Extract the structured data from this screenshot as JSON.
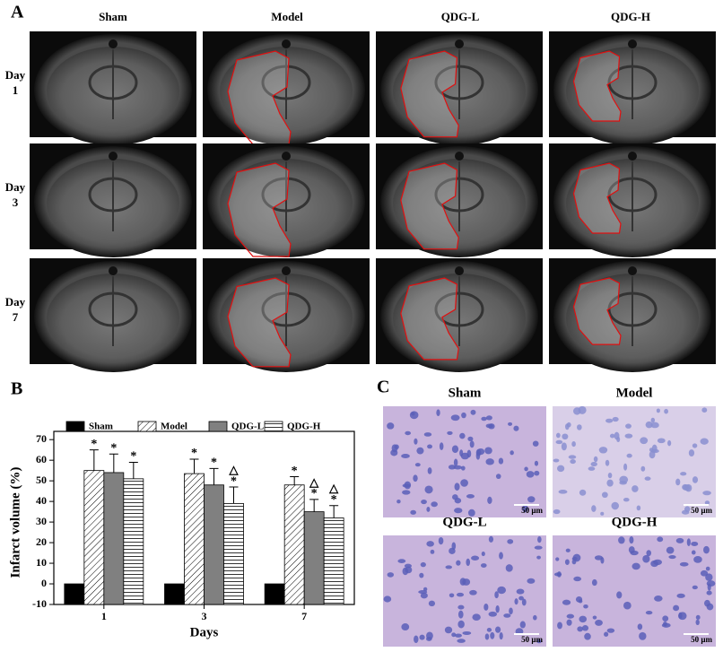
{
  "panel_a": {
    "label": "A",
    "columns": [
      "Sham",
      "Model",
      "QDG-L",
      "QDG-H"
    ],
    "rows": [
      [
        "Day",
        "1"
      ],
      [
        "Day",
        "3"
      ],
      [
        "Day",
        "7"
      ]
    ]
  },
  "chart_data": {
    "type": "bar",
    "label": "B",
    "x_label": "Days",
    "y_label": "Infarct volume (%)",
    "categories": [
      "1",
      "3",
      "7"
    ],
    "series": [
      {
        "name": "Sham",
        "color": "#000000",
        "pattern": "solid",
        "values": [
          0,
          0,
          0
        ],
        "errors": [
          0,
          0,
          0
        ],
        "annotations": [
          [],
          [],
          []
        ]
      },
      {
        "name": "Model",
        "color": "#ffffff",
        "pattern": "diagonal",
        "values": [
          55,
          53.5,
          48
        ],
        "errors": [
          10,
          7,
          4
        ],
        "annotations": [
          [
            "*"
          ],
          [
            "*"
          ],
          [
            "*"
          ]
        ]
      },
      {
        "name": "QDG-L",
        "color": "#808080",
        "pattern": "solid",
        "values": [
          54,
          48,
          35
        ],
        "errors": [
          9,
          8,
          6
        ],
        "annotations": [
          [
            "*"
          ],
          [
            "*"
          ],
          [
            "*",
            "△"
          ]
        ]
      },
      {
        "name": "QDG-H",
        "color": "#ffffff",
        "pattern": "horizontal",
        "values": [
          51,
          39,
          32
        ],
        "errors": [
          8,
          8,
          6
        ],
        "annotations": [
          [
            "*"
          ],
          [
            "*",
            "△"
          ],
          [
            "*",
            "△"
          ]
        ]
      }
    ],
    "ylim": [
      -10,
      74
    ],
    "yticks": [
      -10,
      0,
      10,
      20,
      30,
      40,
      50,
      60,
      70
    ],
    "legend": "top"
  },
  "panel_c": {
    "label": "C",
    "titles": [
      "Sham",
      "Model",
      "QDG-L",
      "QDG-H"
    ],
    "scale_bar": "50 µm"
  }
}
